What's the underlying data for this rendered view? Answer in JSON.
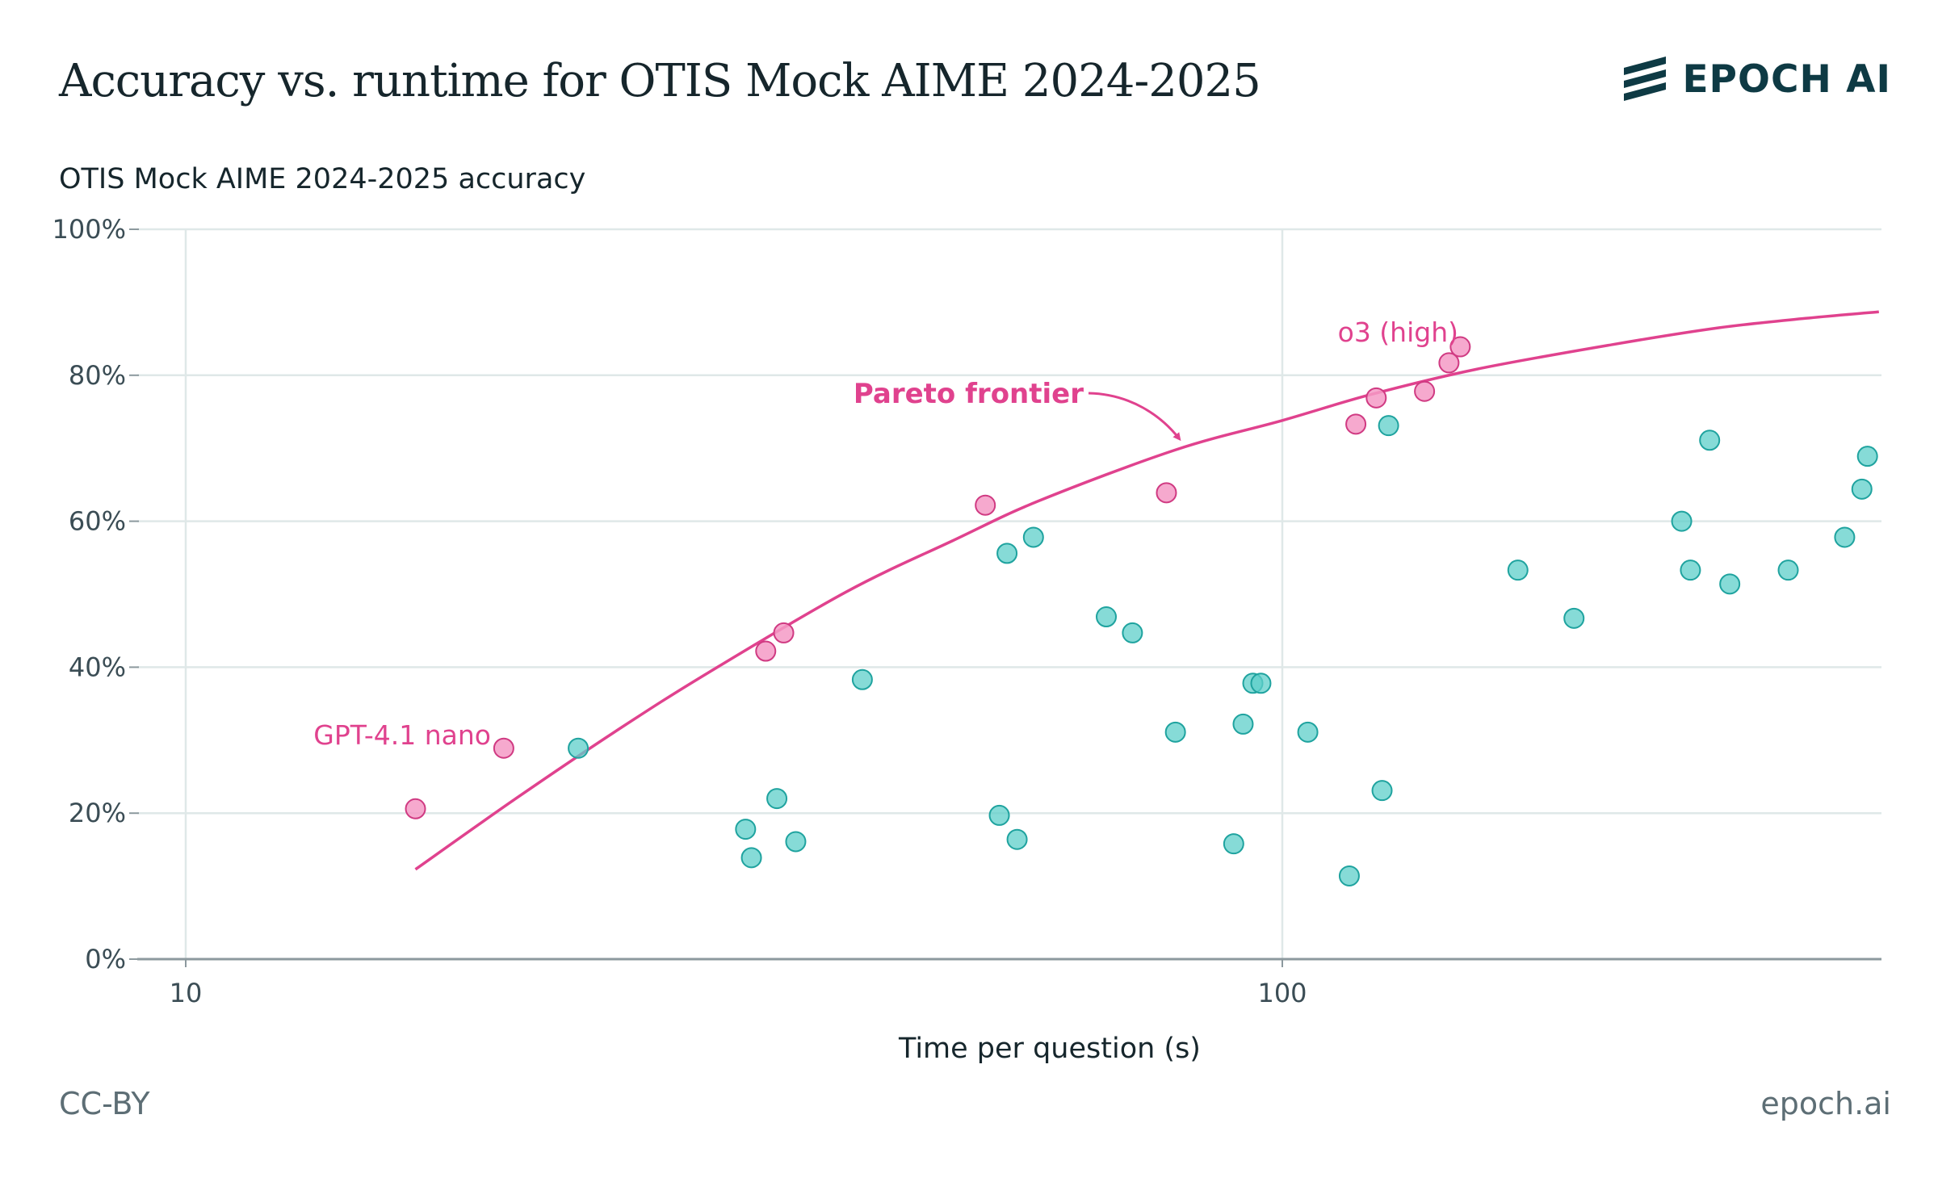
{
  "header": {
    "title": "Accuracy vs. runtime for OTIS Mock AIME 2024-2025",
    "brand": "EPOCH AI"
  },
  "footer": {
    "license": "CC-BY",
    "site": "epoch.ai"
  },
  "icons": {
    "logo": "epoch-stripes-logo-icon"
  },
  "colors": {
    "pareto": "#e0428e",
    "other": "#3fc3bd",
    "pareto_fill": "#f49ac5",
    "other_fill": "#5ecfc9"
  },
  "chart_data": {
    "type": "scatter",
    "ylabel": "OTIS Mock AIME 2024-2025 accuracy",
    "xlabel": "Time per question (s)",
    "x_scale": "log",
    "xlim": [
      10,
      350
    ],
    "ylim": [
      0,
      100
    ],
    "x_ticks": [
      10,
      100
    ],
    "x_tick_labels": [
      "10",
      "100"
    ],
    "y_ticks": [
      0,
      20,
      40,
      60,
      80,
      100
    ],
    "y_tick_labels": [
      "0%",
      "20%",
      "40%",
      "60%",
      "80%",
      "100%"
    ],
    "grid": true,
    "annotations": {
      "pareto_label": "Pareto frontier",
      "low_label": "GPT-4.1 nano",
      "high_label": "o3 (high)"
    },
    "pareto_points": [
      {
        "x": 16.2,
        "y": 20.6
      },
      {
        "x": 19.5,
        "y": 28.9
      },
      {
        "x": 33.8,
        "y": 42.2
      },
      {
        "x": 35.1,
        "y": 44.7
      },
      {
        "x": 53.6,
        "y": 62.2
      },
      {
        "x": 78.4,
        "y": 63.9
      },
      {
        "x": 116.7,
        "y": 73.3
      },
      {
        "x": 121.8,
        "y": 76.9
      },
      {
        "x": 134.8,
        "y": 77.8
      },
      {
        "x": 141.9,
        "y": 81.7
      },
      {
        "x": 145.3,
        "y": 83.9
      }
    ],
    "other_points": [
      {
        "x": 22.8,
        "y": 28.9
      },
      {
        "x": 32.4,
        "y": 17.8
      },
      {
        "x": 32.8,
        "y": 13.9
      },
      {
        "x": 34.6,
        "y": 22.0
      },
      {
        "x": 36.0,
        "y": 16.1
      },
      {
        "x": 41.4,
        "y": 38.3
      },
      {
        "x": 56.1,
        "y": 55.6
      },
      {
        "x": 55.2,
        "y": 19.7
      },
      {
        "x": 57.3,
        "y": 16.4
      },
      {
        "x": 59.3,
        "y": 57.8
      },
      {
        "x": 69.1,
        "y": 46.9
      },
      {
        "x": 73.0,
        "y": 44.7
      },
      {
        "x": 79.9,
        "y": 31.1
      },
      {
        "x": 90.3,
        "y": 15.8
      },
      {
        "x": 92.1,
        "y": 32.2
      },
      {
        "x": 94.0,
        "y": 37.8
      },
      {
        "x": 95.6,
        "y": 37.8
      },
      {
        "x": 105.5,
        "y": 31.1
      },
      {
        "x": 115.1,
        "y": 11.4
      },
      {
        "x": 123.3,
        "y": 23.1
      },
      {
        "x": 125.0,
        "y": 73.1
      },
      {
        "x": 164.0,
        "y": 53.3
      },
      {
        "x": 184.5,
        "y": 46.7
      },
      {
        "x": 231.3,
        "y": 60.0
      },
      {
        "x": 235.6,
        "y": 53.3
      },
      {
        "x": 245.3,
        "y": 71.1
      },
      {
        "x": 255.9,
        "y": 51.4
      },
      {
        "x": 289.3,
        "y": 53.3
      },
      {
        "x": 325.7,
        "y": 57.8
      },
      {
        "x": 337.7,
        "y": 64.4
      },
      {
        "x": 341.7,
        "y": 68.9
      }
    ],
    "frontier_curve": [
      {
        "x": 16.2,
        "y": 12.3
      },
      {
        "x": 20,
        "y": 22.0
      },
      {
        "x": 25,
        "y": 31.8
      },
      {
        "x": 30,
        "y": 39.3
      },
      {
        "x": 40,
        "y": 50.3
      },
      {
        "x": 50,
        "y": 57.3
      },
      {
        "x": 60,
        "y": 62.8
      },
      {
        "x": 80,
        "y": 69.8
      },
      {
        "x": 100,
        "y": 73.8
      },
      {
        "x": 120,
        "y": 77.3
      },
      {
        "x": 150,
        "y": 80.8
      },
      {
        "x": 200,
        "y": 84.2
      },
      {
        "x": 250,
        "y": 86.5
      },
      {
        "x": 300,
        "y": 87.8
      },
      {
        "x": 350,
        "y": 88.7
      }
    ]
  }
}
